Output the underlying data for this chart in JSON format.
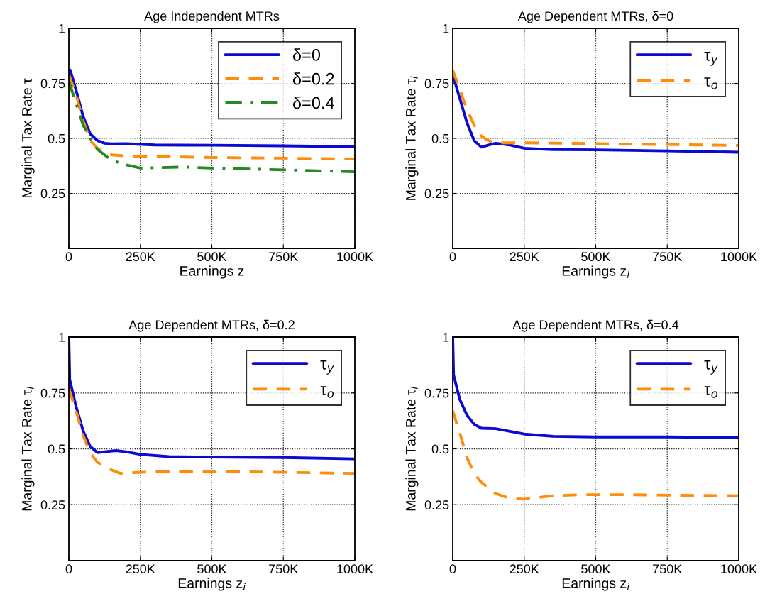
{
  "chart_data": [
    {
      "type": "line",
      "title": "Age Independent MTRs",
      "xlabel": "Earnings z",
      "ylabel": "Marginal Tax Rate τ",
      "xlim": [
        0,
        1000000
      ],
      "ylim": [
        0,
        1
      ],
      "xticks": [
        0,
        {
          "value": 250000,
          "label": "250K"
        },
        {
          "value": 500000,
          "label": "500K"
        },
        {
          "value": 750000,
          "label": "750K"
        },
        {
          "value": 1000000,
          "label": "1000K"
        }
      ],
      "yticks": [
        0.25,
        0.5,
        0.75,
        1
      ],
      "grid": true,
      "legend": "top right",
      "series": [
        {
          "name": "δ=0",
          "color": "#0a0ad2",
          "line_style": "solid",
          "x": [
            0,
            5000,
            25000,
            50000,
            75000,
            100000,
            125000,
            150000,
            200000,
            300000,
            500000,
            750000,
            1000000
          ],
          "values": [
            0.78,
            0.81,
            0.72,
            0.6,
            0.52,
            0.49,
            0.478,
            0.475,
            0.476,
            0.47,
            0.469,
            0.466,
            0.462
          ]
        },
        {
          "name": "δ=0.2",
          "color": "#ff8c0a",
          "line_style": "dashed",
          "x": [
            0,
            25000,
            50000,
            75000,
            100000,
            150000,
            200000,
            300000,
            500000,
            750000,
            1000000
          ],
          "values": [
            0.79,
            0.7,
            0.58,
            0.49,
            0.455,
            0.425,
            0.42,
            0.418,
            0.413,
            0.41,
            0.406
          ]
        },
        {
          "name": "δ=0.4",
          "color": "#228b22",
          "line_style": "dashdot",
          "x": [
            0,
            25000,
            50000,
            75000,
            100000,
            150000,
            200000,
            250000,
            400000,
            500000,
            750000,
            1000000
          ],
          "values": [
            0.76,
            0.66,
            0.56,
            0.5,
            0.45,
            0.4,
            0.38,
            0.365,
            0.37,
            0.365,
            0.357,
            0.348
          ]
        }
      ]
    },
    {
      "type": "line",
      "title": "Age Dependent MTRs, δ=0",
      "xlabel": "Earnings z$_{i}$",
      "ylabel": "Marginal Tax Rate τ$_{i}$",
      "xlim": [
        0,
        1000000
      ],
      "ylim": [
        0,
        1
      ],
      "xticks": [
        0,
        {
          "value": 250000,
          "label": "250K"
        },
        {
          "value": 500000,
          "label": "500K"
        },
        {
          "value": 750000,
          "label": "750K"
        },
        {
          "value": 1000000,
          "label": "1000K"
        }
      ],
      "yticks": [
        0.25,
        0.5,
        0.75,
        1
      ],
      "grid": true,
      "legend": "top right",
      "series": [
        {
          "name": "τ$_{y}$",
          "color": "#0a0ad2",
          "line_style": "solid",
          "x": [
            0,
            25000,
            50000,
            75000,
            100000,
            125000,
            150000,
            200000,
            250000,
            350000,
            500000,
            750000,
            1000000
          ],
          "values": [
            0.79,
            0.68,
            0.57,
            0.49,
            0.46,
            0.47,
            0.478,
            0.47,
            0.455,
            0.449,
            0.448,
            0.443,
            0.437
          ]
        },
        {
          "name": "τ$_{o}$",
          "color": "#ff8c0a",
          "line_style": "dashed",
          "x": [
            0,
            25000,
            50000,
            75000,
            100000,
            125000,
            150000,
            250000,
            500000,
            750000,
            1000000
          ],
          "values": [
            0.81,
            0.72,
            0.63,
            0.56,
            0.51,
            0.49,
            0.48,
            0.48,
            0.476,
            0.472,
            0.468
          ]
        }
      ]
    },
    {
      "type": "line",
      "title": "Age Dependent MTRs, δ=0.2",
      "xlabel": "Earnings z$_{i}$",
      "ylabel": "Marginal Tax Rate τ$_{i}$",
      "xlim": [
        0,
        1000000
      ],
      "ylim": [
        0,
        1
      ],
      "xticks": [
        0,
        {
          "value": 250000,
          "label": "250K"
        },
        {
          "value": 500000,
          "label": "500K"
        },
        {
          "value": 750000,
          "label": "750K"
        },
        {
          "value": 1000000,
          "label": "1000K"
        }
      ],
      "yticks": [
        0.25,
        0.5,
        0.75,
        1
      ],
      "grid": true,
      "legend": "top right",
      "series": [
        {
          "name": "τ$_{y}$",
          "color": "#0a0ad2",
          "line_style": "solid",
          "x": [
            0,
            3000,
            25000,
            50000,
            75000,
            100000,
            125000,
            165000,
            200000,
            250000,
            350000,
            500000,
            750000,
            1000000
          ],
          "values": [
            1.0,
            0.81,
            0.69,
            0.58,
            0.51,
            0.483,
            0.487,
            0.492,
            0.487,
            0.475,
            0.465,
            0.463,
            0.461,
            0.455
          ]
        },
        {
          "name": "τ$_{o}$",
          "color": "#ff8c0a",
          "line_style": "dashed",
          "x": [
            0,
            25000,
            50000,
            75000,
            100000,
            140000,
            180000,
            250000,
            350000,
            500000,
            750000,
            1000000
          ],
          "values": [
            0.77,
            0.67,
            0.56,
            0.48,
            0.44,
            0.41,
            0.39,
            0.395,
            0.4,
            0.4,
            0.395,
            0.39
          ]
        }
      ]
    },
    {
      "type": "line",
      "title": "Age Dependent MTRs, δ=0.4",
      "xlabel": "Earnings z$_{i}$",
      "ylabel": "Marginal Tax Rate τ$_{i}$",
      "xlim": [
        0,
        1000000
      ],
      "ylim": [
        0,
        1
      ],
      "xticks": [
        0,
        {
          "value": 250000,
          "label": "250K"
        },
        {
          "value": 500000,
          "label": "500K"
        },
        {
          "value": 750000,
          "label": "750K"
        },
        {
          "value": 1000000,
          "label": "1000K"
        }
      ],
      "yticks": [
        0.25,
        0.5,
        0.75,
        1
      ],
      "grid": true,
      "legend": "top right",
      "series": [
        {
          "name": "τ$_{y}$",
          "color": "#0a0ad2",
          "line_style": "solid",
          "x": [
            0,
            3000,
            25000,
            50000,
            75000,
            100000,
            150000,
            200000,
            250000,
            350000,
            500000,
            750000,
            1000000
          ],
          "values": [
            1.0,
            0.83,
            0.72,
            0.65,
            0.61,
            0.592,
            0.59,
            0.578,
            0.566,
            0.556,
            0.553,
            0.553,
            0.55
          ]
        },
        {
          "name": "τ$_{o}$",
          "color": "#ff8c0a",
          "line_style": "dashed",
          "x": [
            0,
            25000,
            50000,
            75000,
            100000,
            150000,
            200000,
            250000,
            350000,
            450000,
            600000,
            800000,
            1000000
          ],
          "values": [
            0.67,
            0.57,
            0.46,
            0.39,
            0.35,
            0.3,
            0.278,
            0.275,
            0.29,
            0.295,
            0.295,
            0.292,
            0.29
          ]
        }
      ]
    }
  ]
}
